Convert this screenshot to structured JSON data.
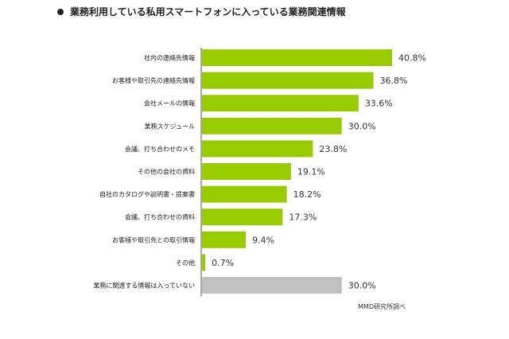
{
  "title": "業務利用している私用スマートフォンに入っている業務関連情報",
  "source_note": "MMD研究所調べ",
  "colors": {
    "bar": "#99cc00",
    "bar_none": "#c0c0c0",
    "axis": "#555555"
  },
  "chart_data": {
    "type": "bar",
    "orientation": "horizontal",
    "title": "業務利用している私用スマートフォンに入っている業務関連情報",
    "xlabel": "",
    "ylabel": "",
    "xlim": [
      0,
      45
    ],
    "grid": false,
    "legend": "none",
    "categories": [
      "社内の連絡先情報",
      "お客様や取引先の連絡先情報",
      "会社メールの情報",
      "業務スケジュール",
      "会議、打ち合わせのメモ",
      "その他の会社の資料",
      "自社のカタログや説明書・提案書",
      "会議、打ち合わせの資料",
      "お客様や取引先との取引情報",
      "その他",
      "業務に関連する情報は入っていない"
    ],
    "values": [
      40.8,
      36.8,
      33.6,
      30.0,
      23.8,
      19.1,
      18.2,
      17.3,
      9.4,
      0.7,
      30.0
    ],
    "value_labels": [
      "40.8%",
      "36.8%",
      "33.6%",
      "30.0%",
      "23.8%",
      "19.1%",
      "18.2%",
      "17.3%",
      "9.4%",
      "0.7%",
      "30.0%"
    ],
    "highlight_gray_index": 10
  }
}
